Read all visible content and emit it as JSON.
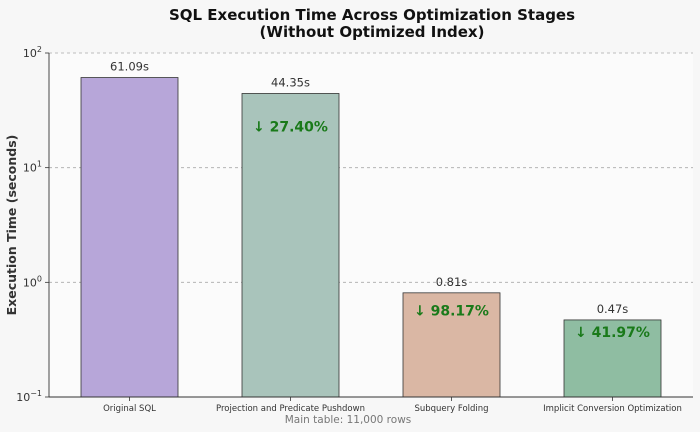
{
  "chart_data": {
    "type": "bar",
    "title_line1": "SQL Execution Time Across Optimization Stages",
    "title_line2": "(Without Optimized Index)",
    "ylabel": "Execution Time (seconds)",
    "y_scale": "log",
    "ylim": [
      0.1,
      100
    ],
    "y_ticks": [
      {
        "value": 100,
        "base": "10",
        "exp": "2"
      },
      {
        "value": 10,
        "base": "10",
        "exp": "1"
      },
      {
        "value": 1,
        "base": "10",
        "exp": "0"
      },
      {
        "value": 0.1,
        "base": "10",
        "exp": "−1"
      }
    ],
    "grid": "y-dashed",
    "categories": [
      "Original SQL",
      "Projection and Predicate Pushdown",
      "Subquery Folding",
      "Implicit Conversion Optimization"
    ],
    "values": [
      61.09,
      44.35,
      0.81,
      0.47
    ],
    "value_labels": [
      "61.09s",
      "44.35s",
      "0.81s",
      "0.47s"
    ],
    "reduction_labels": [
      "",
      "↓ 27.40%",
      "↓ 98.17%",
      "↓ 41.97%"
    ],
    "colors": [
      "#b7a6d9",
      "#a9c4bb",
      "#dab7a4",
      "#8fbda2"
    ],
    "note": "Main table: 11,000 rows"
  }
}
